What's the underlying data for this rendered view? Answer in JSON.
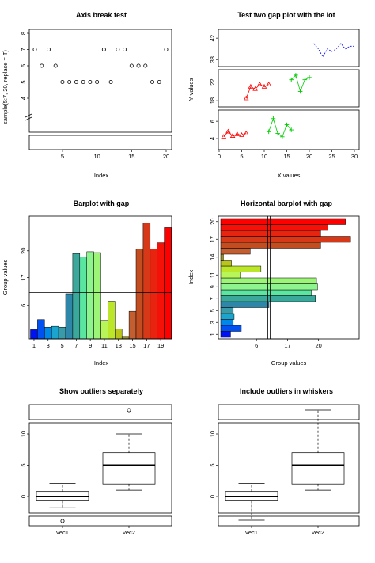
{
  "chart_data": [
    {
      "type": "scatter",
      "title": "Axis break test",
      "xlabel": "Index",
      "ylabel": "sample(5:7, 20, replace = T)",
      "x": [
        1,
        2,
        3,
        4,
        5,
        6,
        7,
        8,
        9,
        10,
        11,
        12,
        13,
        14,
        15,
        16,
        17,
        18,
        19,
        20
      ],
      "y": [
        7,
        6,
        7,
        6,
        5,
        5,
        5,
        5,
        5,
        5,
        7,
        5,
        7,
        7,
        6,
        6,
        6,
        5,
        5,
        7
      ],
      "xticks": [
        5,
        10,
        15,
        20
      ],
      "yticks": [
        4,
        5,
        6,
        7,
        8
      ],
      "ylim": [
        4,
        8
      ]
    },
    {
      "type": "line",
      "title": "Test two gap plot with the lot",
      "xlabel": "X values",
      "ylabel": "Y values",
      "xticks": [
        0,
        5,
        10,
        15,
        20,
        25,
        30
      ],
      "yticks_low": [
        4,
        6
      ],
      "yticks_mid": [
        18,
        22
      ],
      "yticks_high": [
        38,
        42
      ],
      "series": [
        {
          "x": [
            1,
            2,
            3,
            4,
            5,
            6
          ],
          "y": [
            4.2,
            4.8,
            4.3,
            4.5,
            4.4,
            4.6
          ],
          "color": "#ff0000"
        },
        {
          "x": [
            11,
            12,
            13,
            14,
            15,
            16
          ],
          "y": [
            4.8,
            6.3,
            4.6,
            4.2,
            5.6,
            5.0
          ],
          "color": "#00cc00"
        },
        {
          "x": [
            6,
            7,
            8,
            9,
            10,
            11
          ],
          "y": [
            18.5,
            21,
            20.5,
            21.5,
            21,
            21.5
          ],
          "color": "#ff0000"
        },
        {
          "x": [
            16,
            17,
            18,
            19,
            20
          ],
          "y": [
            22.5,
            23.5,
            20,
            22.5,
            23
          ],
          "color": "#00cc00"
        },
        {
          "x": [
            21,
            22,
            23,
            24,
            25,
            26,
            27,
            28,
            29,
            30
          ],
          "y": [
            41,
            40,
            38.5,
            40,
            39.5,
            40,
            41,
            40,
            40.5,
            40.5
          ],
          "color": "#0000ff"
        }
      ]
    },
    {
      "type": "bar",
      "title": "Barplot with gap",
      "xlabel": "Index",
      "ylabel": "Group values",
      "categories": [
        "1",
        "2",
        "3",
        "4",
        "5",
        "6",
        "7",
        "8",
        "9",
        "10",
        "11",
        "12",
        "13",
        "14",
        "15",
        "16",
        "17",
        "18",
        "19",
        "20"
      ],
      "xticks": [
        1,
        3,
        5,
        7,
        9,
        11,
        13,
        15,
        17,
        19
      ],
      "yticks_low": [
        6
      ],
      "yticks_high": [
        17,
        20
      ],
      "values": [
        3.1,
        4.3,
        3.4,
        3.5,
        3.4,
        15.2,
        19.7,
        19.3,
        19.9,
        19.8,
        4.2,
        6.5,
        3.2,
        2.3,
        5.3,
        20.2,
        23.1,
        20.2,
        20.9,
        22.6
      ],
      "colors": [
        "#0012f2",
        "#0050f2",
        "#0088e8",
        "#1ba4cc",
        "#3a9aa8",
        "#2e86a8",
        "#3aa89a",
        "#5ae6a0",
        "#8ef58e",
        "#9cf577",
        "#b7f558",
        "#bce62a",
        "#b9c51a",
        "#9d9110",
        "#c25e30",
        "#c24d20",
        "#d63818",
        "#e72410",
        "#f51008",
        "#ff0000"
      ]
    },
    {
      "type": "bar",
      "orientation": "horizontal",
      "title": "Horizontal barplot with gap",
      "xlabel": "Group values",
      "ylabel": "Index",
      "categories": [
        "1",
        "2",
        "3",
        "4",
        "5",
        "6",
        "7",
        "8",
        "9",
        "10",
        "11",
        "12",
        "13",
        "14",
        "15",
        "16",
        "17",
        "18",
        "19",
        "20"
      ],
      "yticks": [
        1,
        3,
        5,
        7,
        9,
        11,
        14,
        17,
        20
      ],
      "xticks_low": [
        6
      ],
      "xticks_high": [
        17,
        20
      ],
      "values": [
        3.1,
        4.3,
        3.4,
        3.5,
        3.4,
        15.2,
        19.7,
        19.3,
        19.9,
        19.8,
        4.2,
        6.5,
        3.2,
        2.3,
        5.3,
        20.2,
        23.1,
        20.2,
        20.9,
        22.6
      ],
      "colors": [
        "#0012f2",
        "#0050f2",
        "#0088e8",
        "#1ba4cc",
        "#3a9aa8",
        "#2e86a8",
        "#3aa89a",
        "#5ae6a0",
        "#8ef58e",
        "#9cf577",
        "#b7f558",
        "#bce62a",
        "#b9c51a",
        "#9d9110",
        "#c25e30",
        "#c24d20",
        "#d63818",
        "#e72410",
        "#f51008",
        "#ff0000"
      ]
    },
    {
      "type": "boxplot",
      "title": "Show outliers separately",
      "categories": [
        "vec1",
        "vec2"
      ],
      "yticks": [
        0,
        5,
        10
      ],
      "boxes": [
        {
          "whisker_low": -1.8,
          "q1": -0.7,
          "median": 0.0,
          "q3": 0.8,
          "whisker_high": 2.1,
          "outliers": [
            -3.8
          ]
        },
        {
          "whisker_low": 1.0,
          "q1": 2.0,
          "median": 5.0,
          "q3": 7.0,
          "whisker_high": 10.0,
          "outliers": [
            14.0
          ]
        }
      ]
    },
    {
      "type": "boxplot",
      "title": "Include outliers in whiskers",
      "categories": [
        "vec1",
        "vec2"
      ],
      "yticks": [
        0,
        5,
        10
      ],
      "boxes": [
        {
          "whisker_low": -3.8,
          "q1": -0.7,
          "median": 0.0,
          "q3": 0.8,
          "whisker_high": 2.1,
          "outliers": []
        },
        {
          "whisker_low": 1.0,
          "q1": 2.0,
          "median": 5.0,
          "q3": 7.0,
          "whisker_high": 14.0,
          "outliers": []
        }
      ]
    }
  ]
}
